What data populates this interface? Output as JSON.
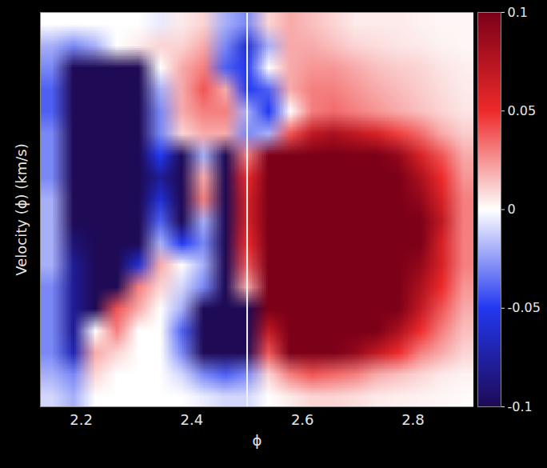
{
  "chart_data": {
    "type": "heatmap",
    "x_label": "ϕ",
    "y_label": "Velocity (ϕ) (km/s)",
    "xlim": [
      2.126,
      2.91
    ],
    "xticks": [
      2.2,
      2.4,
      2.6,
      2.8
    ],
    "ylim": [
      0,
      1
    ],
    "tick_labels": "x",
    "vline": 2.5,
    "colorbar": {
      "lim": [
        -0.1,
        0.1
      ],
      "ticks": [
        0.1,
        0.05,
        0,
        -0.05,
        -0.1
      ]
    },
    "cells": [
      [
        0,
        0,
        0,
        0,
        0,
        -0.005,
        0.005,
        0.01,
        -0.02,
        -0.03,
        0.01,
        0.02,
        0.015,
        0.01,
        0.005,
        0.005,
        0.005,
        0.003,
        0.002,
        0.002
      ],
      [
        -0.02,
        -0.03,
        -0.02,
        0,
        0.005,
        0.01,
        0.01,
        0.02,
        -0.03,
        -0.06,
        -0.02,
        0.02,
        0.02,
        0.015,
        0.01,
        0.008,
        0.006,
        0.005,
        0.003,
        0.002
      ],
      [
        -0.03,
        -0.1,
        -0.13,
        -0.13,
        -0.12,
        0,
        0.02,
        0.03,
        -0.04,
        -0.05,
        0,
        0.02,
        0.025,
        0.025,
        0.02,
        0.015,
        0.012,
        0.01,
        0.006,
        0.004
      ],
      [
        -0.04,
        -0.12,
        -0.13,
        -0.13,
        -0.12,
        -0.02,
        0.02,
        0.04,
        0.02,
        -0.05,
        -0.04,
        0.02,
        0.03,
        0.03,
        0.025,
        0.02,
        0.016,
        0.012,
        0.008,
        0.005
      ],
      [
        -0.04,
        -0.12,
        -0.13,
        -0.13,
        -0.12,
        -0.03,
        0.02,
        0.03,
        0.03,
        -0.02,
        -0.05,
        0,
        0.03,
        0.035,
        0.03,
        0.025,
        0.02,
        0.015,
        0.01,
        0.006
      ],
      [
        -0.03,
        -0.12,
        -0.13,
        -0.13,
        -0.12,
        -0.03,
        0.01,
        0.02,
        0.02,
        -0.03,
        -0.02,
        0.04,
        0.07,
        0.08,
        0.07,
        0.06,
        0.045,
        0.035,
        0.02,
        0.012
      ],
      [
        -0.03,
        -0.12,
        -0.13,
        -0.13,
        -0.12,
        -0.05,
        -0.12,
        -0.02,
        -0.1,
        0.03,
        0.1,
        0.13,
        0.13,
        0.13,
        0.13,
        0.11,
        0.09,
        0.06,
        0.04,
        0.02
      ],
      [
        -0.03,
        -0.12,
        -0.13,
        -0.13,
        -0.12,
        -0.08,
        -0.12,
        0.02,
        -0.13,
        0.05,
        0.12,
        0.13,
        0.13,
        0.13,
        0.13,
        0.13,
        0.11,
        0.08,
        0.05,
        0.025
      ],
      [
        -0.02,
        -0.12,
        -0.13,
        -0.13,
        -0.12,
        -0.06,
        -0.1,
        0.03,
        -0.13,
        0.06,
        0.13,
        0.13,
        0.13,
        0.13,
        0.13,
        0.13,
        0.12,
        0.09,
        0.06,
        0.03
      ],
      [
        -0.02,
        -0.1,
        -0.13,
        -0.13,
        -0.12,
        -0.04,
        -0.12,
        -0.02,
        -0.13,
        0.06,
        0.13,
        0.13,
        0.13,
        0.13,
        0.13,
        0.13,
        0.13,
        0.1,
        0.07,
        0.03
      ],
      [
        -0.02,
        -0.09,
        -0.13,
        -0.13,
        -0.11,
        -0.02,
        -0.05,
        -0.03,
        -0.13,
        0.05,
        0.13,
        0.13,
        0.13,
        0.13,
        0.13,
        0.13,
        0.12,
        0.1,
        0.06,
        0.03
      ],
      [
        -0.02,
        -0.08,
        -0.13,
        -0.12,
        -0.06,
        0.02,
        0,
        -0.02,
        -0.12,
        0.04,
        0.13,
        0.13,
        0.13,
        0.13,
        0.13,
        0.13,
        0.12,
        0.09,
        0.06,
        0.03
      ],
      [
        -0.03,
        -0.08,
        -0.13,
        -0.1,
        0.03,
        0.01,
        -0.01,
        -0.03,
        -0.1,
        0.02,
        0.12,
        0.13,
        0.13,
        0.13,
        0.13,
        0.13,
        0.11,
        0.08,
        0.05,
        0.025
      ],
      [
        -0.03,
        -0.08,
        -0.12,
        0.04,
        0.02,
        0,
        -0.02,
        -0.12,
        -0.13,
        -0.12,
        0.1,
        0.13,
        0.13,
        0.13,
        0.13,
        0.12,
        0.1,
        0.07,
        0.04,
        0.02
      ],
      [
        -0.03,
        -0.08,
        0,
        0.03,
        0,
        0,
        -0.04,
        -0.13,
        -0.13,
        -0.13,
        0.07,
        0.13,
        0.13,
        0.13,
        0.12,
        0.1,
        0.08,
        0.05,
        0.03,
        0.015
      ],
      [
        -0.03,
        -0.07,
        0.02,
        0.01,
        0,
        0,
        -0.03,
        -0.1,
        -0.12,
        -0.1,
        0.04,
        0.1,
        0.12,
        0.11,
        0.09,
        0.07,
        0.05,
        0.03,
        0.02,
        0.01
      ],
      [
        -0.02,
        -0.03,
        0.01,
        0,
        0,
        0,
        -0.01,
        -0.03,
        -0.04,
        -0.03,
        0.01,
        0.03,
        0.04,
        0.035,
        0.03,
        0.02,
        0.015,
        0.01,
        0.005,
        0.003
      ],
      [
        -0.01,
        -0.02,
        0,
        0,
        0,
        0,
        0,
        -0.005,
        -0.01,
        -0.01,
        0,
        0.005,
        0.01,
        0.01,
        0.008,
        0.005,
        0.004,
        0.003,
        0.002,
        0.001
      ]
    ]
  }
}
